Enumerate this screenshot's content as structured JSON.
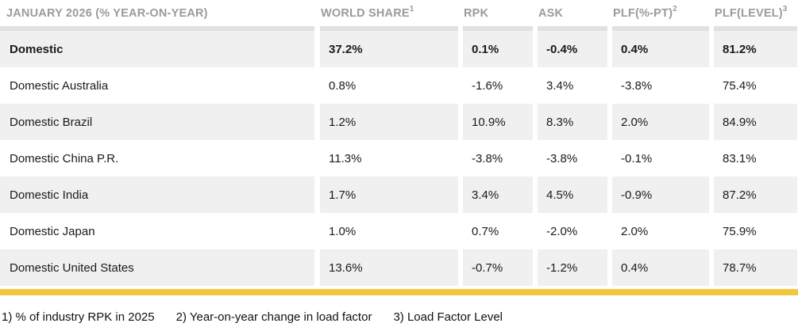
{
  "colors": {
    "accent_bar": "#f3c73c",
    "row_stripe": "#f0f0f0",
    "header_text": "#9b9b9b",
    "header_divider": "#e1e1e1",
    "body_text": "#1a1a1a"
  },
  "table": {
    "columns": [
      {
        "label": "JANUARY 2026 (% YEAR-ON-YEAR)",
        "sup": ""
      },
      {
        "label": "WORLD SHARE",
        "sup": "1"
      },
      {
        "label": "RPK",
        "sup": ""
      },
      {
        "label": "ASK",
        "sup": ""
      },
      {
        "label": "PLF(%-PT)",
        "sup": "2"
      },
      {
        "label": "PLF(LEVEL)",
        "sup": "3"
      }
    ],
    "rows": [
      {
        "label": "Domestic",
        "bold": true,
        "values": [
          "37.2%",
          "0.1%",
          "-0.4%",
          "0.4%",
          "81.2%"
        ]
      },
      {
        "label": "Domestic Australia",
        "bold": false,
        "values": [
          "0.8%",
          "-1.6%",
          "3.4%",
          "-3.8%",
          "75.4%"
        ]
      },
      {
        "label": "Domestic Brazil",
        "bold": false,
        "values": [
          "1.2%",
          "10.9%",
          "8.3%",
          "2.0%",
          "84.9%"
        ]
      },
      {
        "label": "Domestic China P.R.",
        "bold": false,
        "values": [
          "11.3%",
          "-3.8%",
          "-3.8%",
          "-0.1%",
          "83.1%"
        ]
      },
      {
        "label": "Domestic India",
        "bold": false,
        "values": [
          "1.7%",
          "3.4%",
          "4.5%",
          "-0.9%",
          "87.2%"
        ]
      },
      {
        "label": "Domestic Japan",
        "bold": false,
        "values": [
          "1.0%",
          "0.7%",
          "-2.0%",
          "2.0%",
          "75.9%"
        ]
      },
      {
        "label": "Domestic United States",
        "bold": false,
        "values": [
          "13.6%",
          "-0.7%",
          "-1.2%",
          "0.4%",
          "78.7%"
        ]
      }
    ]
  },
  "footnotes": [
    "1) % of industry RPK in 2025",
    "2) Year-on-year change in load factor",
    "3) Load Factor Level"
  ]
}
